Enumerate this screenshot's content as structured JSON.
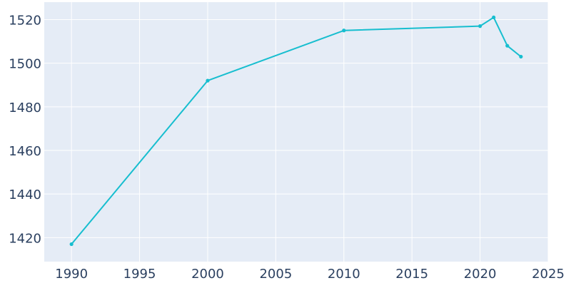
{
  "chart_data": {
    "type": "line",
    "title": "",
    "xlabel": "",
    "ylabel": "",
    "x_ticks": [
      1990,
      1995,
      2000,
      2005,
      2010,
      2015,
      2020,
      2025
    ],
    "y_ticks": [
      1420,
      1440,
      1460,
      1480,
      1500,
      1520
    ],
    "xlim": [
      1988,
      2025
    ],
    "ylim": [
      1409,
      1528
    ],
    "grid": true,
    "legend": "none",
    "colors": {
      "plot_background": "#e5ecf6",
      "grid": "#ffffff",
      "line": "#17becf",
      "tick_text": "#2a3f5f"
    },
    "series": [
      {
        "x": [
          1990,
          2000,
          2010,
          2020,
          2021,
          2022,
          2023
        ],
        "y": [
          1417,
          1492,
          1515,
          1517,
          1521,
          1508,
          1503
        ]
      }
    ]
  }
}
